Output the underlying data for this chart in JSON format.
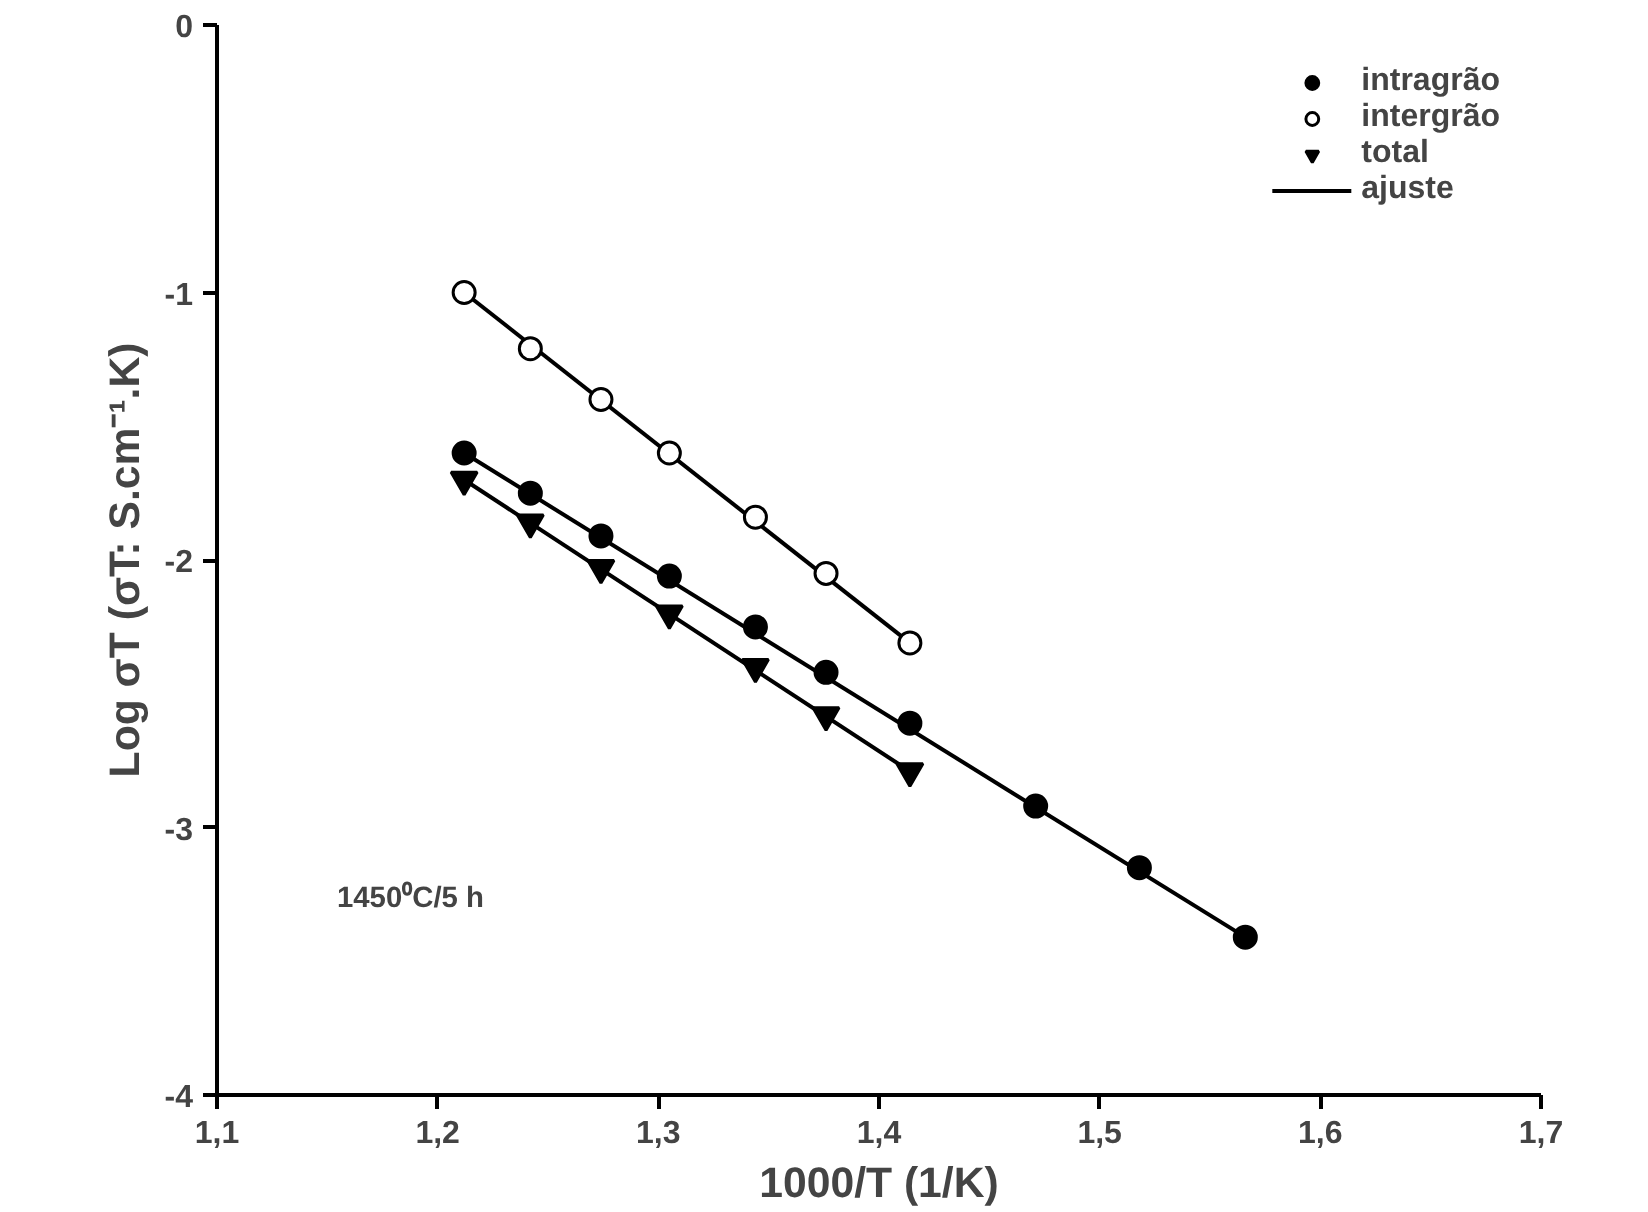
{
  "chart_data": {
    "type": "scatter",
    "xlabel": "1000/T (1/K)",
    "ylabel": "Log σT (σT: S.cm⁻¹.K)",
    "xlim": [
      1.1,
      1.7
    ],
    "ylim": [
      -4,
      0
    ],
    "xticks": [
      {
        "value": 1.1,
        "label": "1,1"
      },
      {
        "value": 1.2,
        "label": "1,2"
      },
      {
        "value": 1.3,
        "label": "1,3"
      },
      {
        "value": 1.4,
        "label": "1,4"
      },
      {
        "value": 1.5,
        "label": "1,5"
      },
      {
        "value": 1.6,
        "label": "1,6"
      },
      {
        "value": 1.7,
        "label": "1,7"
      }
    ],
    "yticks": [
      0,
      -1,
      -2,
      -3,
      -4
    ],
    "grid": false,
    "legend": "top right",
    "annotations": [
      "1450⁰C/5 h"
    ],
    "series": [
      {
        "name": "intragrão",
        "marker": "circle",
        "color": "#000000",
        "x": [
          1.212,
          1.242,
          1.274,
          1.305,
          1.344,
          1.376,
          1.414,
          1.471,
          1.518,
          1.566
        ],
        "values": [
          -1.6,
          -1.75,
          -1.91,
          -2.06,
          -2.25,
          -2.42,
          -2.61,
          -2.92,
          -3.15,
          -3.41
        ]
      },
      {
        "name": "intergrão",
        "marker": "circle_open",
        "color": "#000000",
        "x": [
          1.212,
          1.242,
          1.274,
          1.305,
          1.344,
          1.376,
          1.414
        ],
        "values": [
          -1.0,
          -1.21,
          -1.4,
          -1.6,
          -1.84,
          -2.05,
          -2.31
        ]
      },
      {
        "name": "total",
        "marker": "triangle",
        "color": "#000000",
        "x": [
          1.212,
          1.242,
          1.274,
          1.305,
          1.344,
          1.376,
          1.414
        ],
        "values": [
          -1.7,
          -1.86,
          -2.03,
          -2.2,
          -2.4,
          -2.58,
          -2.79
        ]
      },
      {
        "name": "ajuste",
        "type": "line",
        "line_style": "solid",
        "color": "#000000",
        "x": [
          1.212,
          1.566
        ],
        "values": [
          -1.6,
          -3.41
        ]
      },
      {
        "type": "line",
        "line_style": "solid",
        "color": "#000000",
        "x": [
          1.212,
          1.414
        ],
        "values": [
          -1.0,
          -2.31
        ]
      },
      {
        "type": "line",
        "line_style": "solid",
        "color": "#000000",
        "x": [
          1.212,
          1.414
        ],
        "values": [
          -1.7,
          -2.79
        ]
      }
    ]
  }
}
